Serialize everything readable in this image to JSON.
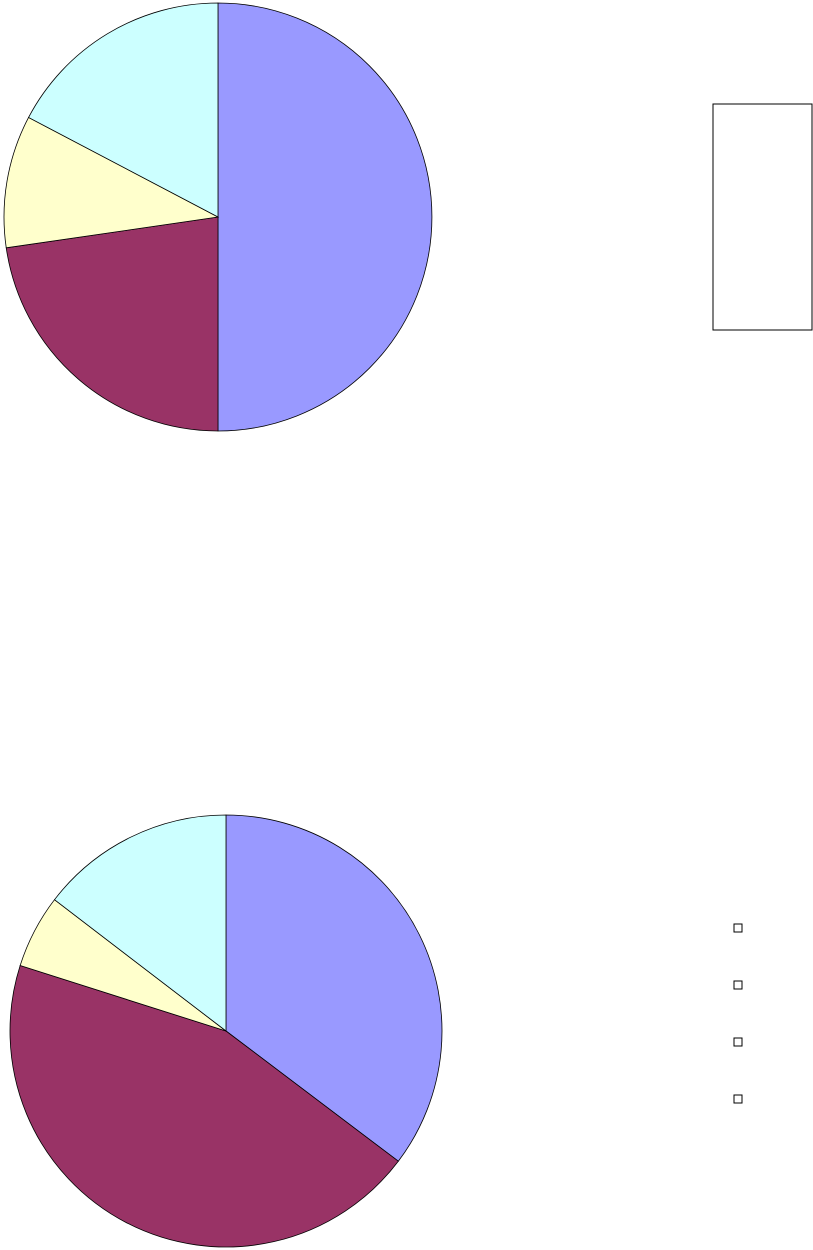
{
  "chart_data": [
    {
      "type": "pie",
      "categories": [
        null,
        null,
        null,
        null
      ],
      "values": [
        50,
        22.7,
        10,
        17.3
      ],
      "colors": [
        "#9999ff",
        "#993366",
        "#ffffcc",
        "#ccffff"
      ],
      "legend": "right"
    },
    {
      "type": "pie",
      "categories": [
        null,
        null,
        null,
        null
      ],
      "values": [
        35.3,
        44.6,
        5.5,
        14.6
      ],
      "colors": [
        "#9999ff",
        "#993366",
        "#ffffcc",
        "#ccffff"
      ],
      "legend": "right"
    }
  ]
}
